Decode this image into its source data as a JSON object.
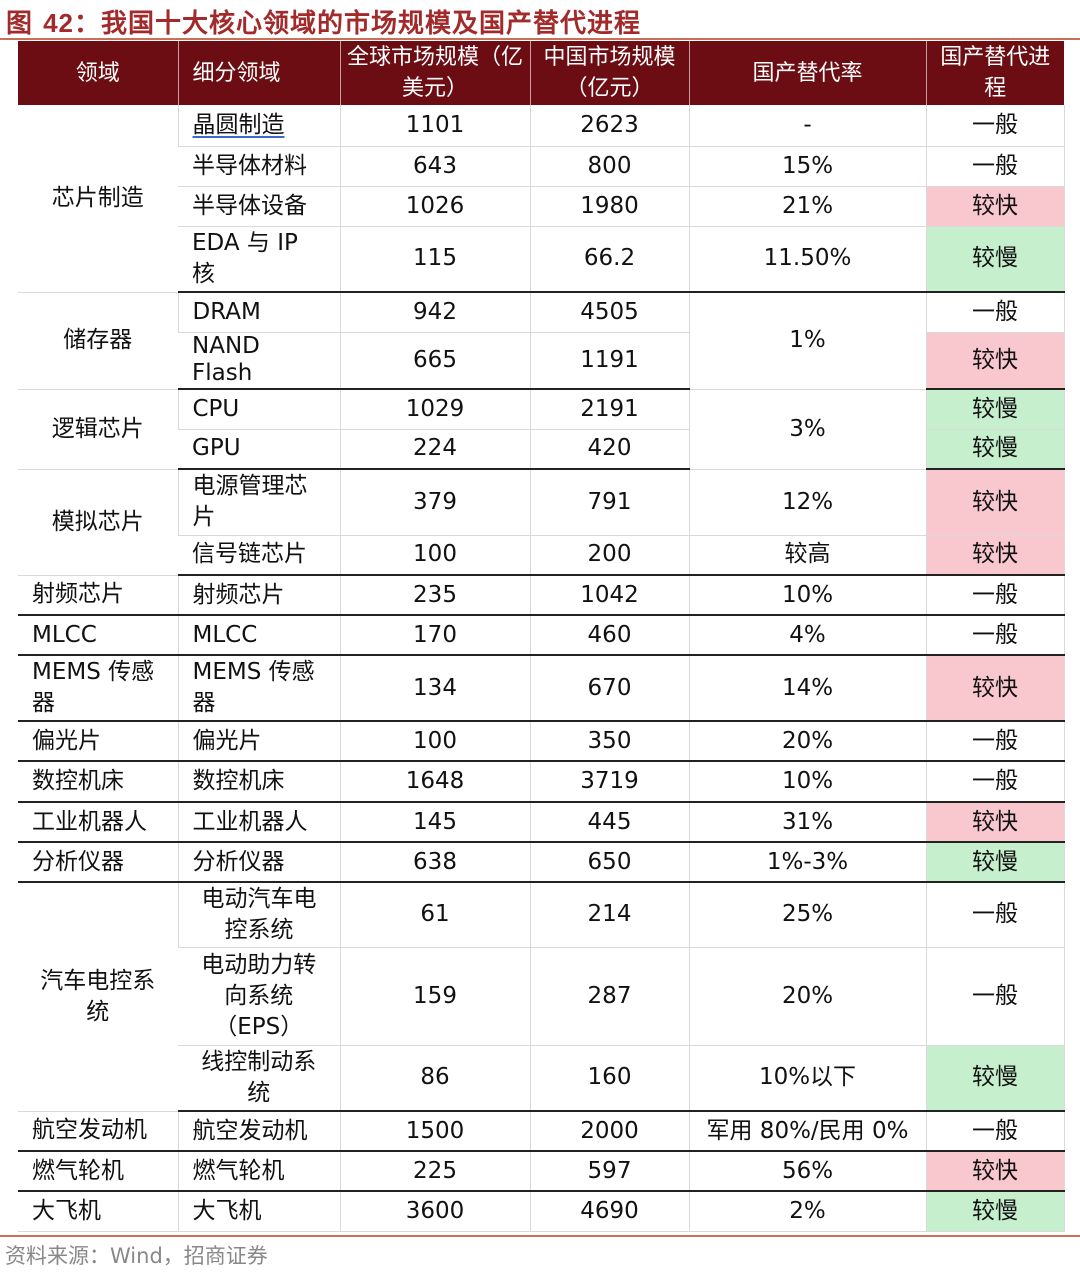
{
  "figure": {
    "label": "图",
    "number": "42",
    "colon": "：",
    "title": "我国十大核心领域的市场规模及国产替代进程"
  },
  "headers": {
    "domain": "领域",
    "subdomain": "细分领域",
    "global_size": "全球市场规模（亿美元）",
    "china_size": "中国市场规模（亿元）",
    "rate": "国产替代率",
    "progress": "国产替代进程"
  },
  "rows": {
    "r1": {
      "domain": "芯片制造",
      "sub": "晶圆制造",
      "global": "1101",
      "china": "2623",
      "rate": "-",
      "progress": "一般"
    },
    "r2": {
      "sub": "半导体材料",
      "global": "643",
      "china": "800",
      "rate": "15%",
      "progress": "一般"
    },
    "r3": {
      "sub": "半导体设备",
      "global": "1026",
      "china": "1980",
      "rate": "21%",
      "progress": "较快"
    },
    "r4": {
      "sub": "EDA 与 IP 核",
      "global": "115",
      "china": "66.2",
      "rate": "11.50%",
      "progress": "较慢"
    },
    "r5": {
      "domain": "储存器",
      "sub": "DRAM",
      "global": "942",
      "china": "4505",
      "rate": "1%",
      "progress": "一般"
    },
    "r6": {
      "sub": "NAND Flash",
      "global": "665",
      "china": "1191",
      "progress": "较快"
    },
    "r7": {
      "domain": "逻辑芯片",
      "sub": "CPU",
      "global": "1029",
      "china": "2191",
      "rate": "3%",
      "progress": "较慢"
    },
    "r8": {
      "sub": "GPU",
      "global": "224",
      "china": "420",
      "progress": "较慢"
    },
    "r9": {
      "domain": "模拟芯片",
      "sub": "电源管理芯片",
      "global": "379",
      "china": "791",
      "rate": "12%",
      "progress": "较快"
    },
    "r10": {
      "sub": "信号链芯片",
      "global": "100",
      "china": "200",
      "rate": "较高",
      "progress": "较快"
    },
    "r11": {
      "domain": "射频芯片",
      "sub": "射频芯片",
      "global": "235",
      "china": "1042",
      "rate": "10%",
      "progress": "一般"
    },
    "r12": {
      "domain": "MLCC",
      "sub": "MLCC",
      "global": "170",
      "china": "460",
      "rate": "4%",
      "progress": "一般"
    },
    "r13": {
      "domain": "MEMS 传感器",
      "sub": "MEMS 传感器",
      "global": "134",
      "china": "670",
      "rate": "14%",
      "progress": "较快"
    },
    "r14": {
      "domain": "偏光片",
      "sub": "偏光片",
      "global": "100",
      "china": "350",
      "rate": "20%",
      "progress": "一般"
    },
    "r15": {
      "domain": "数控机床",
      "sub": "数控机床",
      "global": "1648",
      "china": "3719",
      "rate": "10%",
      "progress": "一般"
    },
    "r16": {
      "domain": "工业机器人",
      "sub": "工业机器人",
      "global": "145",
      "china": "445",
      "rate": "31%",
      "progress": "较快"
    },
    "r17": {
      "domain": "分析仪器",
      "sub": "分析仪器",
      "global": "638",
      "china": "650",
      "rate": "1%-3%",
      "progress": "较慢"
    },
    "r18": {
      "domain": "汽车电控系统",
      "sub": "电动汽车电控系统",
      "global": "61",
      "china": "214",
      "rate": "25%",
      "progress": "一般"
    },
    "r19": {
      "sub": "电动助力转向系统（EPS）",
      "global": "159",
      "china": "287",
      "rate": "20%",
      "progress": "一般"
    },
    "r20": {
      "sub": "线控制动系统",
      "global": "86",
      "china": "160",
      "rate": "10%以下",
      "progress": "较慢"
    },
    "r21": {
      "domain": "航空发动机",
      "sub": "航空发动机",
      "global": "1500",
      "china": "2000",
      "rate": "军用 80%/民用 0%",
      "progress": "一般"
    },
    "r22": {
      "domain": "燃气轮机",
      "sub": "燃气轮机",
      "global": "225",
      "china": "597",
      "rate": "56%",
      "progress": "较快"
    },
    "r23": {
      "domain": "大飞机",
      "sub": "大飞机",
      "global": "3600",
      "china": "4690",
      "rate": "2%",
      "progress": "较慢"
    }
  },
  "source": "资料来源：Wind，招商证券",
  "colors": {
    "fast": "#f9c8cf",
    "slow": "#c6efce",
    "header": "#6b0d12",
    "accent": "#a32a2a"
  }
}
